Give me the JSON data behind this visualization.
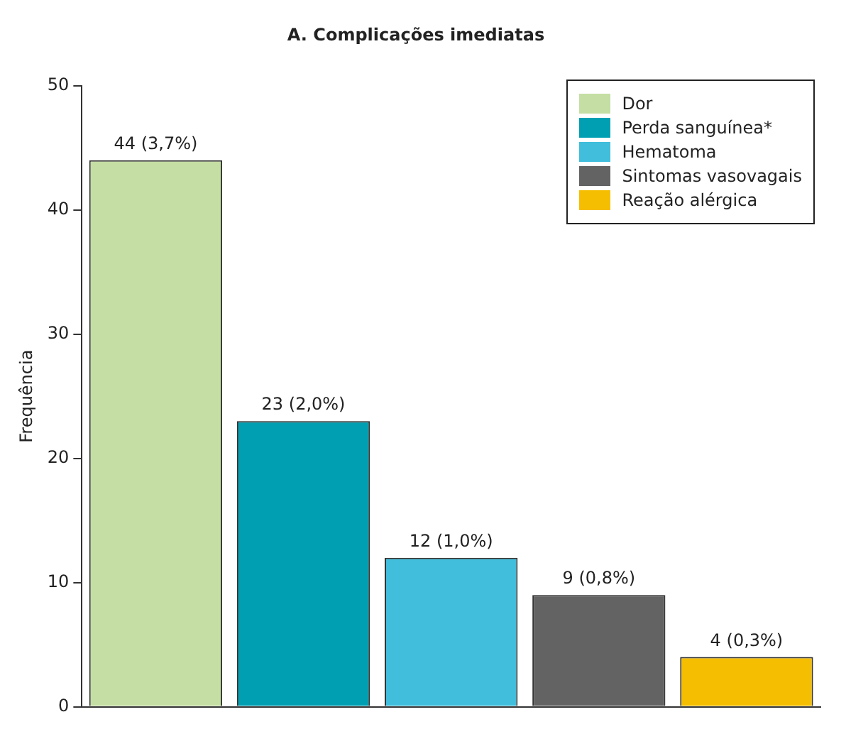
{
  "chart_data": {
    "type": "bar",
    "title": "A. Complicações imediatas",
    "ylabel": "Frequência",
    "categories": [
      null,
      null,
      null,
      null,
      null
    ],
    "series": [
      {
        "name": "Dor",
        "color": "#c4dea3",
        "values": [
          44,
          null,
          null,
          null,
          null
        ],
        "value_labels": [
          "44 (3,7%)",
          null,
          null,
          null,
          null
        ]
      },
      {
        "name": "Perda sanguínea*",
        "color": "#00a0b2",
        "values": [
          null,
          23,
          null,
          null,
          null
        ],
        "value_labels": [
          null,
          "23 (2,0%)",
          null,
          null,
          null
        ]
      },
      {
        "name": "Hematoma",
        "color": "#40bedb",
        "values": [
          null,
          null,
          12,
          null,
          null
        ],
        "value_labels": [
          null,
          null,
          "12 (1,0%)",
          null,
          null
        ]
      },
      {
        "name": "Sintomas vasovagais",
        "color": "#636363",
        "values": [
          null,
          null,
          null,
          9,
          null
        ],
        "value_labels": [
          null,
          null,
          null,
          "9 (0,8%)",
          null
        ]
      },
      {
        "name": "Reação alérgica",
        "color": "#f5be00",
        "values": [
          null,
          null,
          null,
          null,
          4
        ],
        "value_labels": [
          null,
          null,
          null,
          null,
          "4 (0,3%)"
        ]
      }
    ],
    "ylim": [
      0,
      50
    ],
    "yticks": [
      0,
      10,
      20,
      30,
      40,
      50
    ],
    "grid": false,
    "legend": "top right"
  }
}
